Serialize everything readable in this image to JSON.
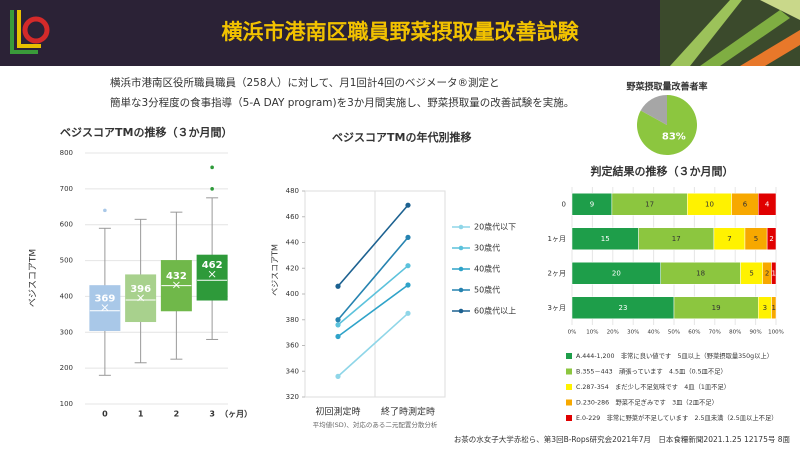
{
  "header": {
    "title": "横浜市港南区職員野菜摂取量改善試験"
  },
  "description": [
    "横浜市港南区役所職員職員（258人）に対して、月1回計4回のベジメータ®測定と",
    "簡単な3分程度の食事指導（5-A DAY program)を3か月間実施し、野菜摂取量の改善試験を実施。"
  ],
  "footer": "お茶の水女子大学赤松ら、第3回B-Rops研究会2021年7月　日本食糧新聞2021.1.25 12175号 8面",
  "chart_data": [
    {
      "type": "box",
      "title": "ベジスコアTMの推移（３か月間）",
      "ylabel": "ベジスコアTM",
      "xlabel": "（ヶ月）",
      "categories": [
        "0",
        "1",
        "2",
        "3"
      ],
      "boxes": [
        {
          "color": "#a9c8e8",
          "whisker_low": 180,
          "q1": 305,
          "median": 360,
          "q3": 430,
          "whisker_high": 590,
          "mean": 369,
          "outliers": [
            640
          ]
        },
        {
          "color": "#a8d18d",
          "whisker_low": 215,
          "q1": 330,
          "median": 390,
          "q3": 460,
          "whisker_high": 615,
          "mean": 396,
          "outliers": []
        },
        {
          "color": "#70b84a",
          "whisker_low": 225,
          "q1": 360,
          "median": 430,
          "q3": 500,
          "whisker_high": 635,
          "mean": 432,
          "outliers": []
        },
        {
          "color": "#2e9a3a",
          "whisker_low": 280,
          "q1": 390,
          "median": 445,
          "q3": 515,
          "whisker_high": 675,
          "mean": 462,
          "outliers": [
            700,
            760
          ]
        }
      ],
      "ylim": [
        100,
        800
      ],
      "yticks": [
        100,
        200,
        300,
        400,
        500,
        600,
        700,
        800
      ],
      "grid": true
    },
    {
      "type": "line",
      "title": "ベジスコアTMの年代別推移",
      "ylabel": "ベジスコアTM",
      "categories": [
        "初回測定時",
        "終了時測定時"
      ],
      "note": "平均値(SD)、対応のある二元配置分散分析",
      "series": [
        {
          "name": "20歳代以下",
          "color": "#8fd6e8",
          "values": [
            336,
            385
          ]
        },
        {
          "name": "30歳代",
          "color": "#5cc2dc",
          "values": [
            376,
            422
          ]
        },
        {
          "name": "40歳代",
          "color": "#2fa3c9",
          "values": [
            367,
            407
          ]
        },
        {
          "name": "50歳代",
          "color": "#2683b0",
          "values": [
            380,
            444
          ]
        },
        {
          "name": "60歳代以上",
          "color": "#1c6190",
          "values": [
            406,
            469
          ]
        }
      ],
      "ylim": [
        320,
        480
      ],
      "yticks": [
        320,
        340,
        360,
        380,
        400,
        420,
        440,
        460,
        480
      ]
    },
    {
      "type": "pie",
      "title": "野菜摂取量改善者率",
      "values": [
        83,
        17
      ],
      "value_labels": [
        "83%",
        null
      ],
      "colors": [
        "#8cc63f",
        "#a6a6a6"
      ]
    },
    {
      "type": "stacked_percent_hbar",
      "title": "判定結果の推移（３か月間）",
      "categories": [
        "0",
        "1ヶ月",
        "2ヶ月",
        "3ヶ月"
      ],
      "series": [
        {
          "name": "A.444-1,200　非常に良い値です　5皿以上（野菜摂取量350g以上）",
          "color": "#1e9e4a",
          "values": [
            9,
            15,
            20,
            23
          ]
        },
        {
          "name": "B.355－443　頑張っています　4.5皿（0.5皿不足）",
          "color": "#8cc63f",
          "values": [
            17,
            17,
            18,
            19
          ]
        },
        {
          "name": "C.287-354　まだ少し不足気味です　4皿（1皿不足）",
          "color": "#fff200",
          "values": [
            10,
            7,
            5,
            3
          ]
        },
        {
          "name": "D.230-286　野菜不足ぎみです　3皿（2皿不足）",
          "color": "#f7a800",
          "values": [
            6,
            5,
            2,
            1
          ]
        },
        {
          "name": "E.0-229　非常に野菜が不足しています　2.5皿未満（2.5皿以上不足）",
          "color": "#e00000",
          "values": [
            4,
            2,
            1,
            0
          ]
        }
      ],
      "xlim": [
        0,
        100
      ],
      "xticks": [
        {
          "value": 0,
          "label": "0%"
        },
        {
          "value": 10,
          "label": "10%"
        },
        {
          "value": 20,
          "label": "20%"
        },
        {
          "value": 30,
          "label": "30%"
        },
        {
          "value": 40,
          "label": "40%"
        },
        {
          "value": 50,
          "label": "50%"
        },
        {
          "value": 60,
          "label": "60%"
        },
        {
          "value": 70,
          "label": "70%"
        },
        {
          "value": 80,
          "label": "80%"
        },
        {
          "value": 90,
          "label": "90%"
        },
        {
          "value": 100,
          "label": "100%"
        }
      ],
      "grid": true
    }
  ]
}
